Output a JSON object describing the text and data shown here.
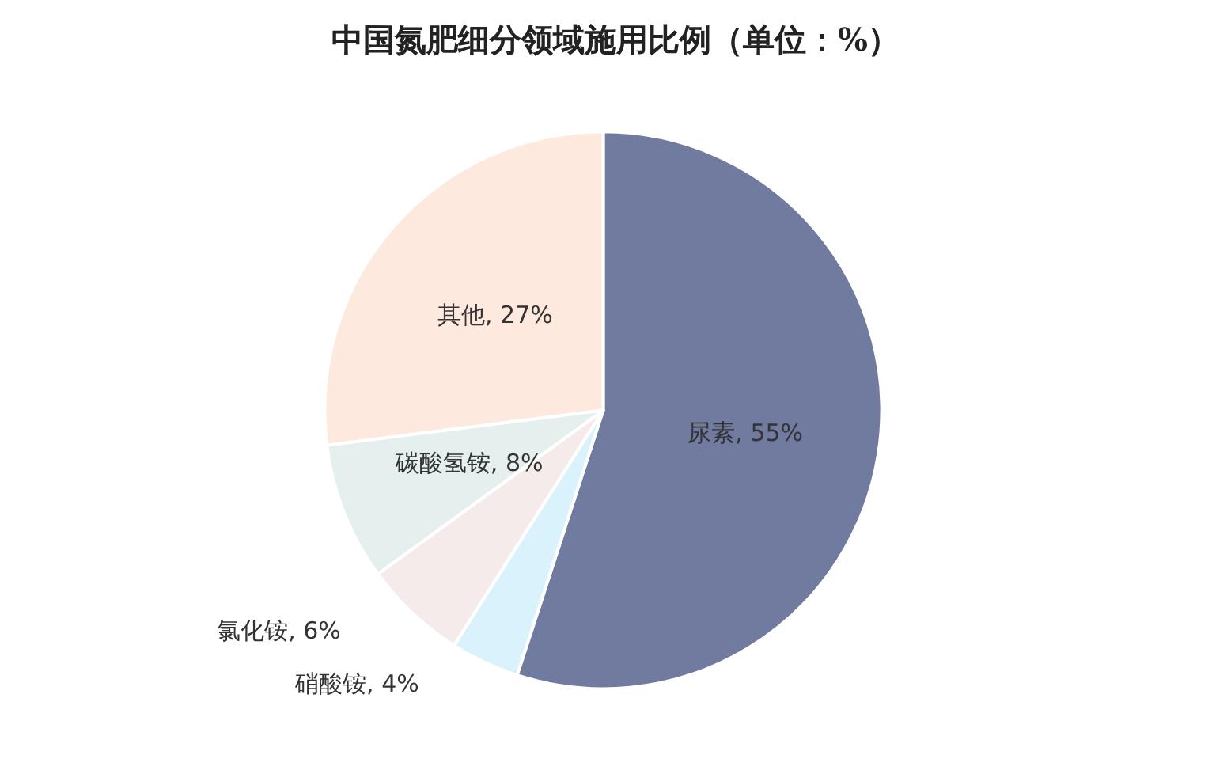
{
  "chart_data": {
    "type": "pie",
    "title": "中国氮肥细分领域施用比例（单位：%）",
    "categories": [
      "尿素",
      "硝酸铵",
      "氯化铵",
      "碳酸氢铵",
      "其他"
    ],
    "values": [
      55,
      4,
      6,
      8,
      27
    ],
    "value_labels": [
      "55%",
      "4%",
      "6%",
      "8%",
      "27%"
    ],
    "colors": [
      "#717ba0",
      "#d9f2fb",
      "#f6ebeb",
      "#e4efee",
      "#fde9de"
    ],
    "legend": false
  }
}
